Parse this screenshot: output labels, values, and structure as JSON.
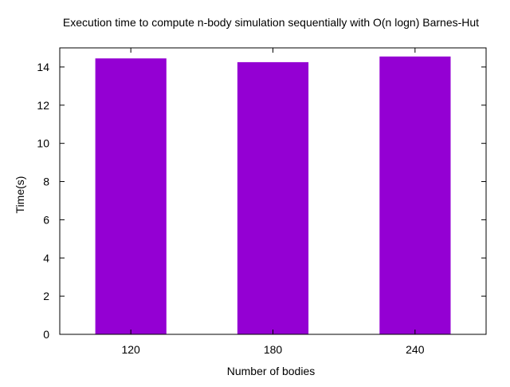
{
  "chart_data": {
    "type": "bar",
    "title": "Execution time to compute n-body simulation sequentially with O(n logn) Barnes-Hut",
    "xlabel": "Number of bodies",
    "ylabel": "Time(s)",
    "categories": [
      "120",
      "180",
      "240"
    ],
    "values": [
      14.45,
      14.25,
      14.55
    ],
    "ylim": [
      0,
      15
    ],
    "yticks": [
      0,
      2,
      4,
      6,
      8,
      10,
      12,
      14
    ],
    "bar_color": "#9400D3",
    "grid": false,
    "legend": "none"
  }
}
